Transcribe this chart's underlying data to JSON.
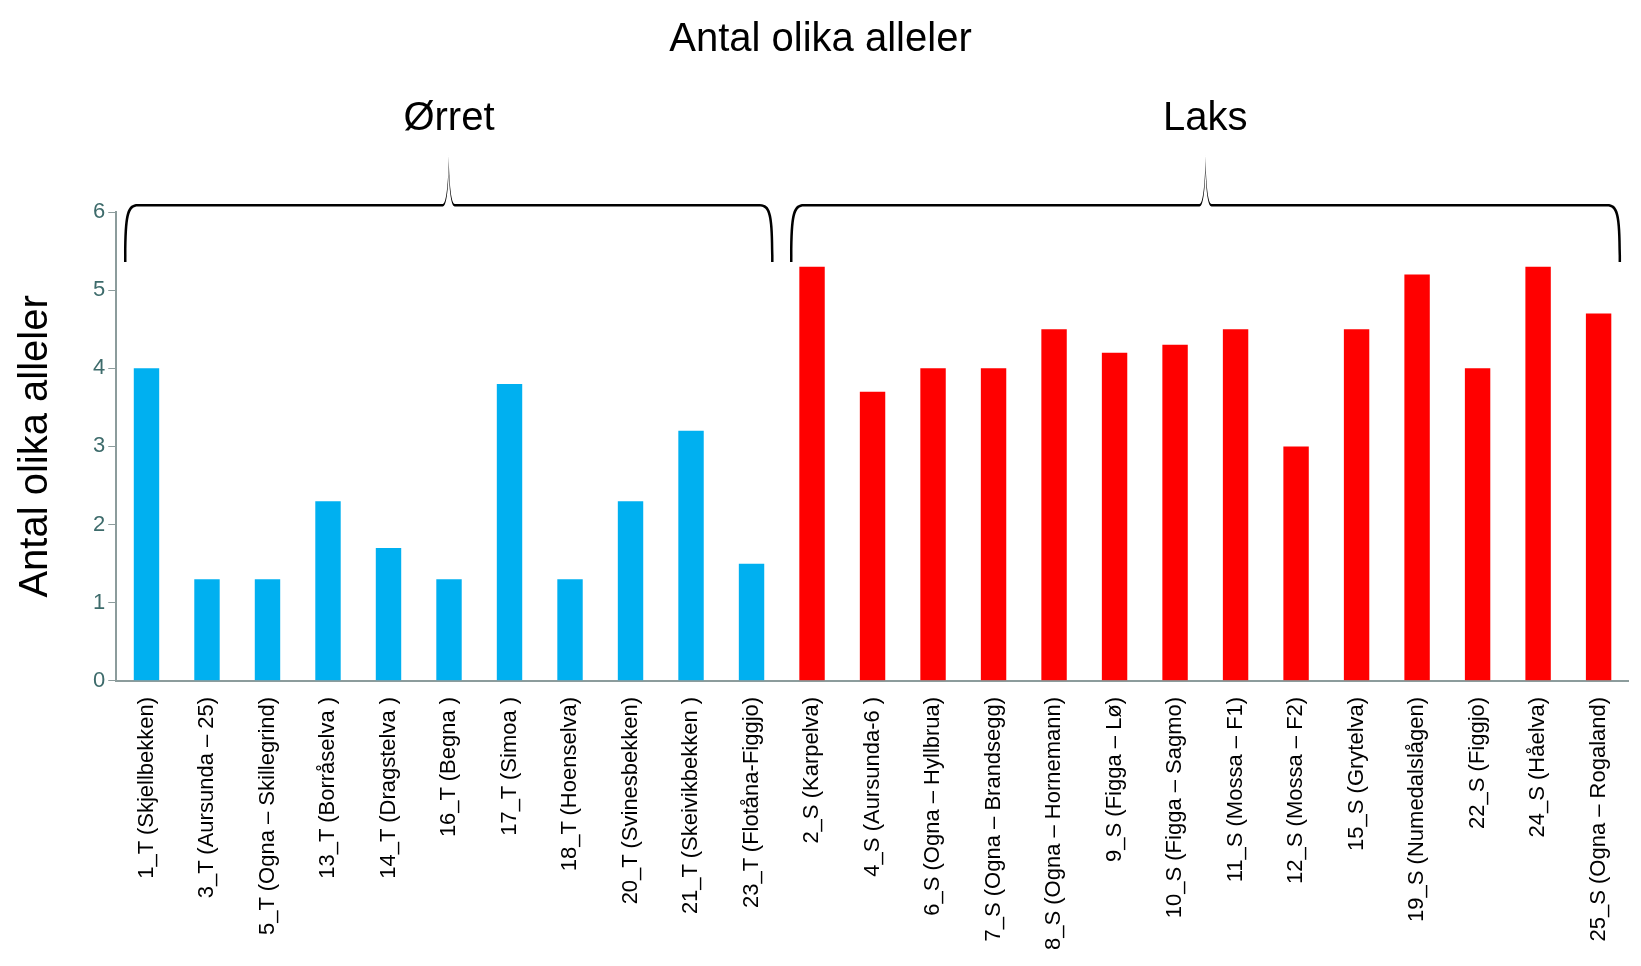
{
  "chart_data": {
    "type": "bar",
    "title": "Antal olika alleler",
    "ylabel": "Antal olika alleler",
    "categories": [
      "1_T (Skjellbekken)",
      "3_T (Aursunda – 25)",
      "5_T (Ogna – Skillegrind)",
      "13_T (Borråselva )",
      "14_T (Dragstelva )",
      "16_T (Begna )",
      "17_T (Simoa )",
      "18_T (Hoenselva)",
      "20_T (Svinesbekken)",
      "21_T (Skeivikbekken )",
      "23_T (Flotåna-Figgjo)",
      "2_S (Karpelva)",
      "4_S (Aursunda-6 )",
      "6_S (Ogna – Hyllbrua)",
      "7_S (Ogna – Brandsegg)",
      "8_S (Ogna – Hornemann)",
      "9_S (Figga – Lø)",
      "10_S (Figga – Sagmo)",
      "11_S (Mossa – F1)",
      "12_S (Mossa – F2)",
      "15_S (Grytelva)",
      "19_S (Numedalslågen)",
      "22_S (Figgjo)",
      "24_S (Håelva)",
      "25_S (Ogna – Rogaland)"
    ],
    "values": [
      4,
      1.3,
      1.3,
      2.3,
      1.7,
      1.3,
      3.8,
      1.3,
      2.3,
      3.2,
      1.5,
      5.3,
      3.7,
      4,
      4,
      4.5,
      4.2,
      4.3,
      4.5,
      3,
      4.5,
      5.2,
      4,
      5.3,
      4.7
    ],
    "colors": [
      "#00b0f0",
      "#00b0f0",
      "#00b0f0",
      "#00b0f0",
      "#00b0f0",
      "#00b0f0",
      "#00b0f0",
      "#00b0f0",
      "#00b0f0",
      "#00b0f0",
      "#00b0f0",
      "#ff0000",
      "#ff0000",
      "#ff0000",
      "#ff0000",
      "#ff0000",
      "#ff0000",
      "#ff0000",
      "#ff0000",
      "#ff0000",
      "#ff0000",
      "#ff0000",
      "#ff0000",
      "#ff0000",
      "#ff0000"
    ],
    "annotations": [
      "Ørret",
      "Laks"
    ],
    "ylim": [
      0,
      6
    ],
    "yticks": [
      0,
      1,
      2,
      3,
      4,
      5,
      6
    ],
    "grid": false,
    "legend": false
  }
}
